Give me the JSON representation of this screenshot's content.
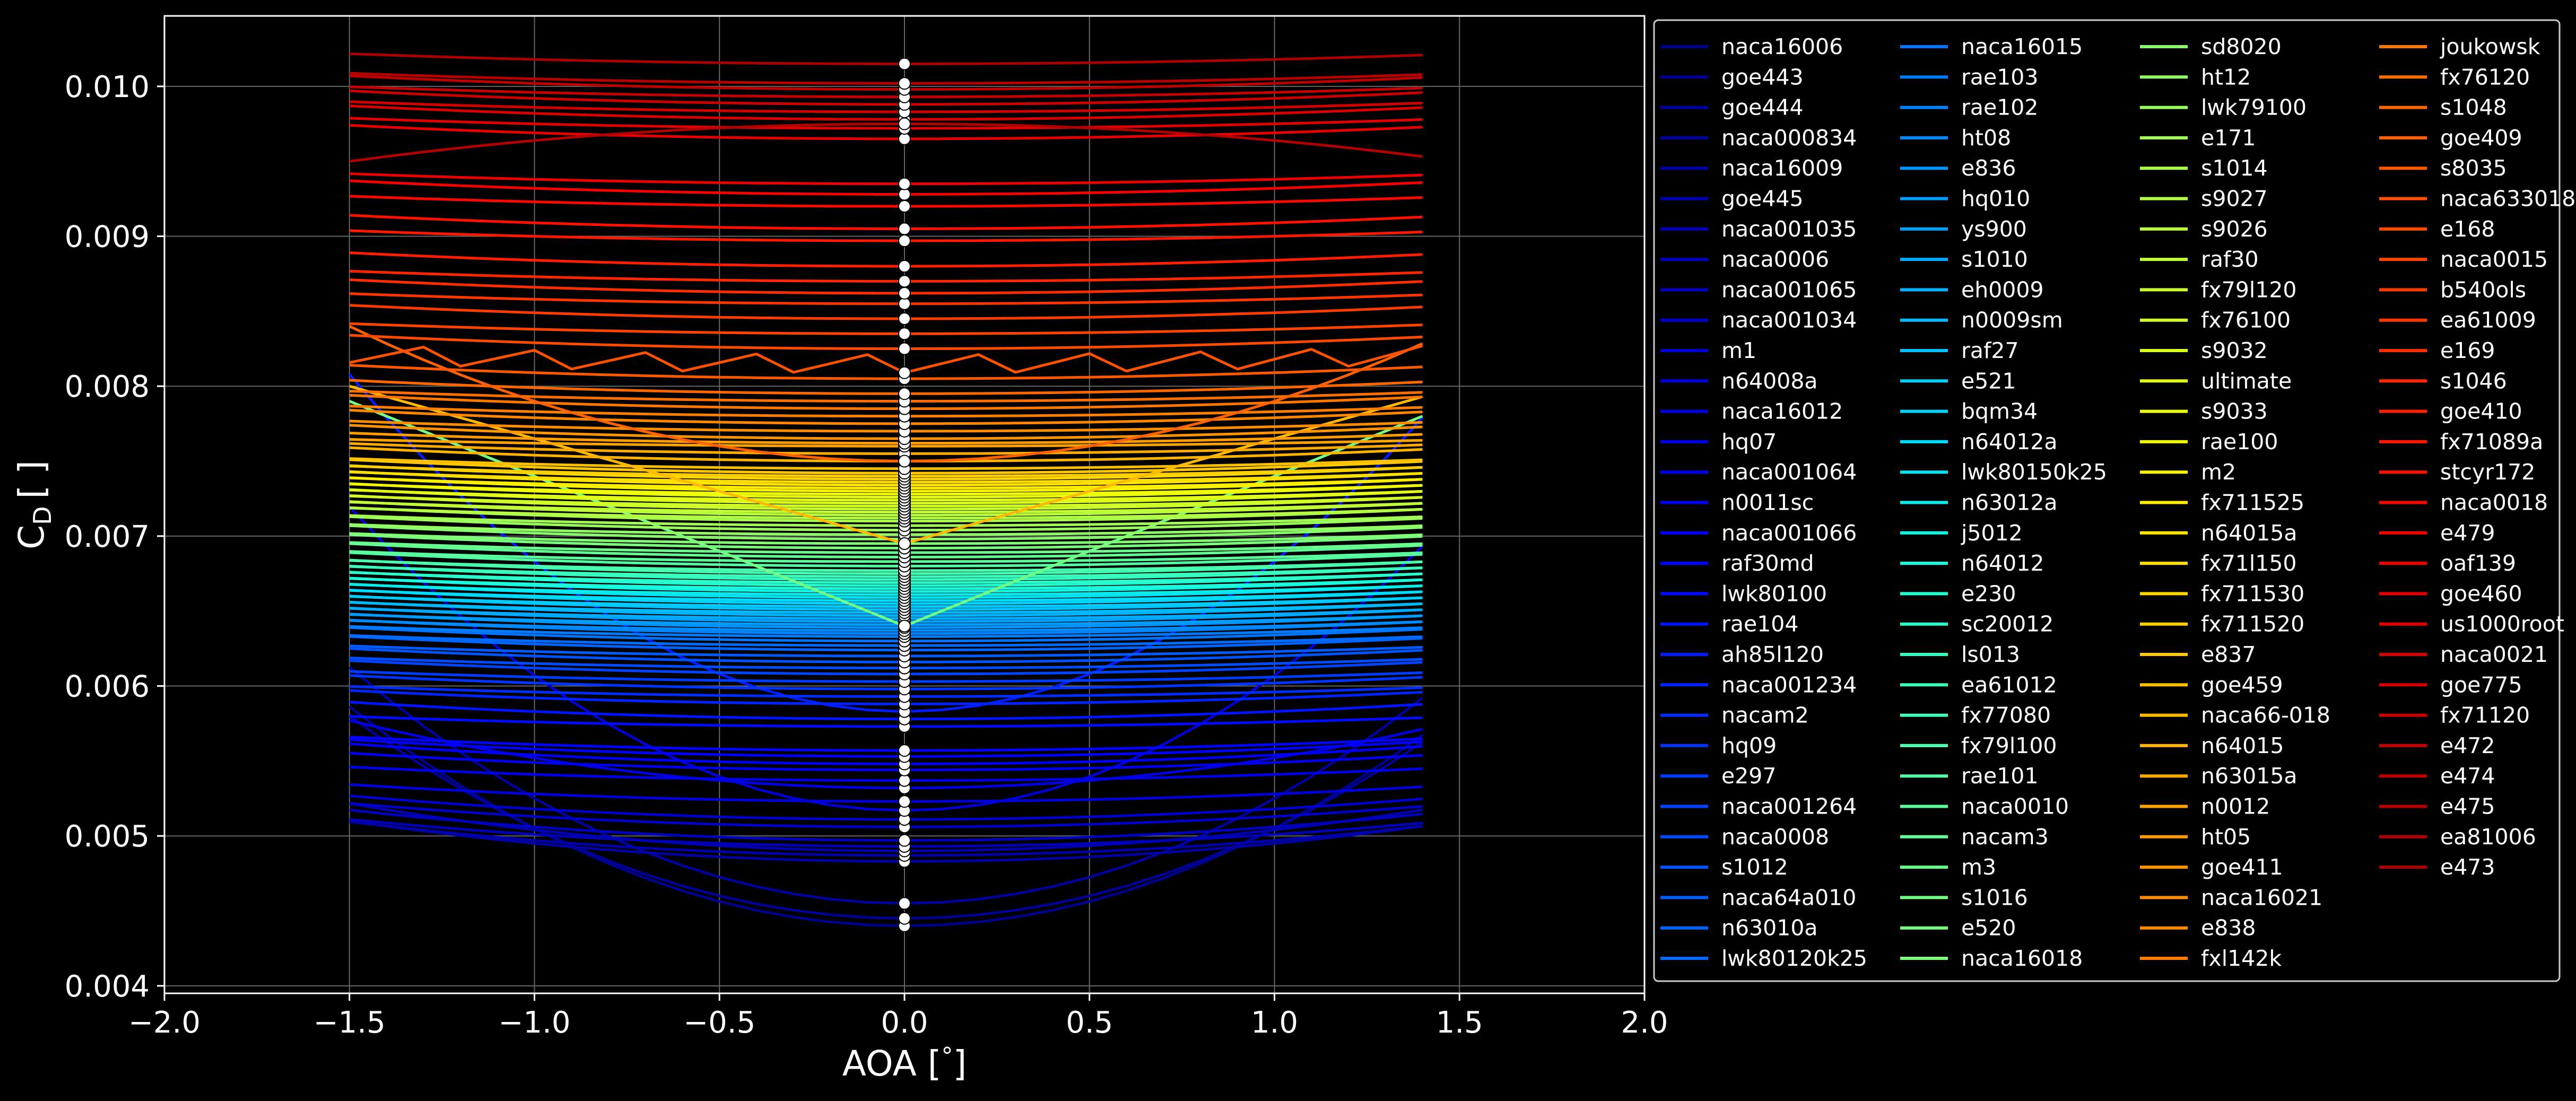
{
  "chart_data": {
    "type": "line",
    "title": "",
    "xlabel": "AOA [",
    "xlabel_unit": "°",
    "xlabel_close": "]",
    "ylabel_main": "C",
    "ylabel_sub": "D",
    "ylabel_unit": "[ ]",
    "xlim": [
      -2.0,
      2.0
    ],
    "ylim": [
      0.00395,
      0.01047
    ],
    "x_ticks": [
      -2.0,
      -1.5,
      -1.0,
      -0.5,
      0.0,
      0.5,
      1.0,
      1.5,
      2.0
    ],
    "x_tick_labels": [
      "−2.0",
      "−1.5",
      "−1.0",
      "−0.5",
      "0.0",
      "0.5",
      "1.0",
      "1.5",
      "2.0"
    ],
    "y_ticks": [
      0.004,
      0.005,
      0.006,
      0.007,
      0.008,
      0.009,
      0.01
    ],
    "y_tick_labels": [
      "0.004",
      "0.005",
      "0.006",
      "0.007",
      "0.008",
      "0.009",
      "0.010"
    ],
    "grid": true,
    "legend_placement": "outside-right",
    "legend_columns": 4,
    "x": [
      -1.5,
      -1.4,
      -1.3,
      -1.2,
      -1.1,
      -1.0,
      -0.9,
      -0.8,
      -0.7,
      -0.6,
      -0.5,
      -0.4,
      -0.3,
      -0.2,
      -0.1,
      0.0,
      0.1,
      0.2,
      0.3,
      0.4,
      0.5,
      0.6,
      0.7,
      0.8,
      0.9,
      1.0,
      1.1,
      1.2,
      1.3,
      1.4
    ],
    "marker_x": 0.0,
    "colormap": "jet",
    "colors": {
      "background": "#000000",
      "axes": "#ffffff",
      "grid": "#666666",
      "marker_fill": "#ffffff",
      "marker_edge": "#000000",
      "legend_border": "#cccccc"
    },
    "series": [
      {
        "name": "naca16006",
        "cd0": 0.0044,
        "k": 0.00065,
        "shape": "parabola",
        "color": "#00008f"
      },
      {
        "name": "goe443",
        "cd0": 0.00445,
        "k": 0.0006,
        "shape": "parabola",
        "color": "#000096"
      },
      {
        "name": "goe444",
        "cd0": 0.00455,
        "k": 0.0007,
        "shape": "parabola",
        "color": "#00009d"
      },
      {
        "name": "naca000834",
        "cd0": 0.00483,
        "k": 0.00012,
        "shape": "parabola",
        "color": "#0000a3"
      },
      {
        "name": "naca16009",
        "cd0": 0.00487,
        "k": 0.0001,
        "shape": "parabola",
        "color": "#0000aa"
      },
      {
        "name": "goe445",
        "cd0": 0.0049,
        "k": 0.00014,
        "shape": "parabola",
        "color": "#0000b1"
      },
      {
        "name": "naca001035",
        "cd0": 0.00493,
        "k": 8e-05,
        "shape": "parabola",
        "color": "#0000b8"
      },
      {
        "name": "naca0006",
        "cd0": 0.00497,
        "k": 9e-05,
        "shape": "parabola",
        "color": "#0000bf"
      },
      {
        "name": "naca001065",
        "cd0": 0.00506,
        "k": 7e-05,
        "shape": "parabola",
        "color": "#0000c6"
      },
      {
        "name": "naca001034",
        "cd0": 0.00511,
        "k": 7e-05,
        "shape": "parabola",
        "color": "#0000cd"
      },
      {
        "name": "m1",
        "cd0": 0.00517,
        "k": 0.0009,
        "shape": "parabola",
        "color": "#0000d4"
      },
      {
        "name": "n64008a",
        "cd0": 0.00523,
        "k": 5e-05,
        "shape": "parabola",
        "color": "#0000db"
      },
      {
        "name": "naca16012",
        "cd0": 0.00532,
        "k": 0.0002,
        "shape": "parabola",
        "color": "#0000e2"
      },
      {
        "name": "hq07",
        "cd0": 0.00537,
        "k": 4e-05,
        "shape": "parabola",
        "color": "#0000e8"
      },
      {
        "name": "naca001064",
        "cd0": 0.00544,
        "k": 5e-05,
        "shape": "parabola",
        "color": "#0000ef"
      },
      {
        "name": "n0011sc",
        "cd0": 0.00548,
        "k": 6e-05,
        "shape": "parabola",
        "color": "#0000f6"
      },
      {
        "name": "naca001066",
        "cd0": 0.00553,
        "k": 5e-05,
        "shape": "parabola",
        "color": "#0000fd"
      },
      {
        "name": "raf30md",
        "cd0": 0.00557,
        "k": 4e-05,
        "shape": "parabola",
        "color": "#0004ff"
      },
      {
        "name": "lwk80100",
        "cd0": 0.00573,
        "k": 3e-05,
        "shape": "parabola",
        "color": "#000cff"
      },
      {
        "name": "rae104",
        "cd0": 0.00578,
        "k": 5e-05,
        "shape": "parabola",
        "color": "#0014ff"
      },
      {
        "name": "ah85l120",
        "cd0": 0.00583,
        "k": 0.001,
        "shape": "parabola",
        "color": "#001cff"
      },
      {
        "name": "naca001234",
        "cd0": 0.00588,
        "k": 4e-05,
        "shape": "parabola",
        "color": "#0024ff"
      },
      {
        "name": "nacam2",
        "cd0": 0.00593,
        "k": 3e-05,
        "shape": "parabola",
        "color": "#002cff"
      },
      {
        "name": "hq09",
        "cd0": 0.00598,
        "k": 4e-05,
        "shape": "parabola",
        "color": "#0034ff"
      },
      {
        "name": "e297",
        "cd0": 0.00603,
        "k": 3e-05,
        "shape": "parabola",
        "color": "#003cff"
      },
      {
        "name": "naca001264",
        "cd0": 0.00608,
        "k": 4e-05,
        "shape": "parabola",
        "color": "#0044ff"
      },
      {
        "name": "naca0008",
        "cd0": 0.00612,
        "k": 3e-05,
        "shape": "parabola",
        "color": "#004cff"
      },
      {
        "name": "s1012",
        "cd0": 0.00616,
        "k": 4e-05,
        "shape": "parabola",
        "color": "#0054ff"
      },
      {
        "name": "naca64a010",
        "cd0": 0.0062,
        "k": 3e-05,
        "shape": "parabola",
        "color": "#005cff"
      },
      {
        "name": "n63010a",
        "cd0": 0.00624,
        "k": 4e-05,
        "shape": "parabola",
        "color": "#0064ff"
      },
      {
        "name": "lwk80120k25",
        "cd0": 0.00627,
        "k": 3e-05,
        "shape": "parabola",
        "color": "#006cff"
      },
      {
        "name": "naca16015",
        "cd0": 0.0063,
        "k": 4e-05,
        "shape": "parabola",
        "color": "#0074ff"
      },
      {
        "name": "rae103",
        "cd0": 0.00633,
        "k": 3e-05,
        "shape": "parabola",
        "color": "#007cff"
      },
      {
        "name": "rae102",
        "cd0": 0.00635,
        "k": 4e-05,
        "shape": "parabola",
        "color": "#0084ff"
      },
      {
        "name": "ht08",
        "cd0": 0.00637,
        "k": 3e-05,
        "shape": "parabola",
        "color": "#008cff"
      },
      {
        "name": "e836",
        "cd0": 0.00639,
        "k": 4e-05,
        "shape": "parabola",
        "color": "#0094ff"
      },
      {
        "name": "hq010",
        "cd0": 0.00641,
        "k": 3e-05,
        "shape": "parabola",
        "color": "#009cff"
      },
      {
        "name": "ys900",
        "cd0": 0.00643,
        "k": 4e-05,
        "shape": "parabola",
        "color": "#00a4ff"
      },
      {
        "name": "s1010",
        "cd0": 0.00645,
        "k": 3e-05,
        "shape": "parabola",
        "color": "#00acff"
      },
      {
        "name": "eh0009",
        "cd0": 0.00647,
        "k": 4e-05,
        "shape": "parabola",
        "color": "#00b4ff"
      },
      {
        "name": "n0009sm",
        "cd0": 0.00649,
        "k": 3e-05,
        "shape": "parabola",
        "color": "#00bcff"
      },
      {
        "name": "raf27",
        "cd0": 0.00651,
        "k": 4e-05,
        "shape": "parabola",
        "color": "#00c4ff"
      },
      {
        "name": "e521",
        "cd0": 0.00653,
        "k": 3e-05,
        "shape": "parabola",
        "color": "#00ccff"
      },
      {
        "name": "bqm34",
        "cd0": 0.00655,
        "k": 4e-05,
        "shape": "parabola",
        "color": "#00d4ff"
      },
      {
        "name": "n64012a",
        "cd0": 0.00657,
        "k": 3e-05,
        "shape": "parabola",
        "color": "#00dcfe"
      },
      {
        "name": "lwk80150k25",
        "cd0": 0.00659,
        "k": 4e-05,
        "shape": "parabola",
        "color": "#02e4f4"
      },
      {
        "name": "n63012a",
        "cd0": 0.00661,
        "k": 3e-05,
        "shape": "parabola",
        "color": "#0aecec"
      },
      {
        "name": "j5012",
        "cd0": 0.00663,
        "k": 4e-05,
        "shape": "parabola",
        "color": "#12f4e4"
      },
      {
        "name": "n64012",
        "cd0": 0.00665,
        "k": 3e-05,
        "shape": "parabola",
        "color": "#1afcdc"
      },
      {
        "name": "e230",
        "cd0": 0.00667,
        "k": 4e-05,
        "shape": "parabola",
        "color": "#22ffd4"
      },
      {
        "name": "sc20012",
        "cd0": 0.00669,
        "k": 3e-05,
        "shape": "parabola",
        "color": "#2affcc"
      },
      {
        "name": "ls013",
        "cd0": 0.00671,
        "k": 4e-05,
        "shape": "parabola",
        "color": "#32ffc4"
      },
      {
        "name": "ea61012",
        "cd0": 0.00673,
        "k": 3e-05,
        "shape": "parabola",
        "color": "#3affbc"
      },
      {
        "name": "fx77080",
        "cd0": 0.00675,
        "k": 4e-05,
        "shape": "parabola",
        "color": "#42ffb4"
      },
      {
        "name": "fx79l100",
        "cd0": 0.00677,
        "k": 3e-05,
        "shape": "parabola",
        "color": "#4affac"
      },
      {
        "name": "rae101",
        "cd0": 0.0068,
        "k": 4e-05,
        "shape": "parabola",
        "color": "#52ffa4"
      },
      {
        "name": "naca0010",
        "cd0": 0.00683,
        "k": 3e-05,
        "shape": "parabola",
        "color": "#5aff9c"
      },
      {
        "name": "nacam3",
        "cd0": 0.00686,
        "k": 4e-05,
        "shape": "parabola",
        "color": "#62ff94"
      },
      {
        "name": "m3",
        "cd0": 0.00689,
        "k": 3e-05,
        "shape": "parabola",
        "color": "#6aff8c"
      },
      {
        "name": "s1016",
        "cd0": 0.0064,
        "k": 0.001,
        "shape": "v",
        "color": "#72ff84"
      },
      {
        "name": "e520",
        "cd0": 0.00692,
        "k": 4e-05,
        "shape": "parabola",
        "color": "#7aff7c"
      },
      {
        "name": "naca16018",
        "cd0": 0.00695,
        "k": 3e-05,
        "shape": "parabola",
        "color": "#82ff74"
      },
      {
        "name": "sd8020",
        "cd0": 0.00698,
        "k": 4e-05,
        "shape": "parabola",
        "color": "#8aff6c"
      },
      {
        "name": "ht12",
        "cd0": 0.00701,
        "k": 3e-05,
        "shape": "parabola",
        "color": "#92ff64"
      },
      {
        "name": "lwk79100",
        "cd0": 0.00704,
        "k": 4e-05,
        "shape": "parabola",
        "color": "#9aff5c"
      },
      {
        "name": "e171",
        "cd0": 0.00707,
        "k": 3e-05,
        "shape": "parabola",
        "color": "#a2ff54"
      },
      {
        "name": "s1014",
        "cd0": 0.0071,
        "k": 4e-05,
        "shape": "parabola",
        "color": "#aaff4c"
      },
      {
        "name": "s9027",
        "cd0": 0.00712,
        "k": 3e-05,
        "shape": "parabola",
        "color": "#b2ff44"
      },
      {
        "name": "s9026",
        "cd0": 0.00714,
        "k": 4e-05,
        "shape": "parabola",
        "color": "#baff3c"
      },
      {
        "name": "raf30",
        "cd0": 0.00716,
        "k": 3e-05,
        "shape": "parabola",
        "color": "#c2ff34"
      },
      {
        "name": "fx79l120",
        "cd0": 0.00718,
        "k": 4e-05,
        "shape": "parabola",
        "color": "#caff2c"
      },
      {
        "name": "fx76100",
        "cd0": 0.0072,
        "k": 3e-05,
        "shape": "parabola",
        "color": "#d2ff24"
      },
      {
        "name": "s9032",
        "cd0": 0.00722,
        "k": 4e-05,
        "shape": "parabola",
        "color": "#daff1c"
      },
      {
        "name": "ultimate",
        "cd0": 0.00724,
        "k": 3e-05,
        "shape": "parabola",
        "color": "#e2ff14"
      },
      {
        "name": "s9033",
        "cd0": 0.00726,
        "k": 4e-05,
        "shape": "parabola",
        "color": "#eaff0c"
      },
      {
        "name": "rae100",
        "cd0": 0.00728,
        "k": 3e-05,
        "shape": "parabola",
        "color": "#f2fc04"
      },
      {
        "name": "m2",
        "cd0": 0.0073,
        "k": 4e-05,
        "shape": "parabola",
        "color": "#faf400"
      },
      {
        "name": "fx711525",
        "cd0": 0.00732,
        "k": 3e-05,
        "shape": "parabola",
        "color": "#ffed00"
      },
      {
        "name": "n64015a",
        "cd0": 0.00734,
        "k": 4e-05,
        "shape": "parabola",
        "color": "#ffe500"
      },
      {
        "name": "fx71l150",
        "cd0": 0.00736,
        "k": 3e-05,
        "shape": "parabola",
        "color": "#ffde00"
      },
      {
        "name": "fx711530",
        "cd0": 0.00738,
        "k": 4e-05,
        "shape": "parabola",
        "color": "#ffd700"
      },
      {
        "name": "fx711520",
        "cd0": 0.0074,
        "k": 3e-05,
        "shape": "parabola",
        "color": "#ffcf00"
      },
      {
        "name": "e837",
        "cd0": 0.00742,
        "k": 4e-05,
        "shape": "parabola",
        "color": "#ffc800"
      },
      {
        "name": "goe459",
        "cd0": 0.00745,
        "k": 3e-05,
        "shape": "parabola",
        "color": "#ffc000"
      },
      {
        "name": "naca66-018",
        "cd0": 0.00695,
        "k": 0.0007,
        "shape": "v",
        "color": "#ffb900"
      },
      {
        "name": "n64015",
        "cd0": 0.0075,
        "k": 4e-05,
        "shape": "parabola",
        "color": "#ffb200"
      },
      {
        "name": "n63015a",
        "cd0": 0.00755,
        "k": 3e-05,
        "shape": "parabola",
        "color": "#ffaa00"
      },
      {
        "name": "n0012",
        "cd0": 0.0076,
        "k": 2e-05,
        "shape": "parabola",
        "color": "#ffa300"
      },
      {
        "name": "ht05",
        "cd0": 0.00762,
        "k": 3e-05,
        "shape": "parabola",
        "color": "#ff9c00"
      },
      {
        "name": "goe411",
        "cd0": 0.00765,
        "k": 4e-05,
        "shape": "parabola",
        "color": "#ff9400"
      },
      {
        "name": "naca16021",
        "cd0": 0.0077,
        "k": 3e-05,
        "shape": "parabola",
        "color": "#ff8d00"
      },
      {
        "name": "e838",
        "cd0": 0.00775,
        "k": 4e-05,
        "shape": "parabola",
        "color": "#ff8600"
      },
      {
        "name": "fxl142k",
        "cd0": 0.0078,
        "k": 3e-05,
        "shape": "parabola",
        "color": "#ff7e00"
      },
      {
        "name": "joukowsk",
        "cd0": 0.00785,
        "k": 4e-05,
        "shape": "parabola",
        "color": "#ff7700"
      },
      {
        "name": "fx76120",
        "cd0": 0.0079,
        "k": 3e-05,
        "shape": "parabola",
        "color": "#ff6f00"
      },
      {
        "name": "s1048",
        "cd0": 0.00795,
        "k": 4e-05,
        "shape": "parabola",
        "color": "#ff6800"
      },
      {
        "name": "goe409",
        "cd0": 0.0075,
        "k": 0.0004,
        "shape": "parabola",
        "color": "#ff6100"
      },
      {
        "name": "s8035",
        "cd0": 0.00805,
        "k": 4e-05,
        "shape": "parabola",
        "color": "#ff5900"
      },
      {
        "name": "naca633018",
        "cd0": 0.00815,
        "k": 3e-05,
        "shape": "wiggle",
        "color": "#ff5200"
      },
      {
        "name": "e168",
        "cd0": 0.00825,
        "k": 4e-05,
        "shape": "parabola",
        "color": "#ff4b00"
      },
      {
        "name": "naca0015",
        "cd0": 0.00835,
        "k": 3e-05,
        "shape": "parabola",
        "color": "#ff4300"
      },
      {
        "name": "b540ols",
        "cd0": 0.00845,
        "k": 4e-05,
        "shape": "parabola",
        "color": "#ff3c00"
      },
      {
        "name": "ea61009",
        "cd0": 0.00855,
        "k": 3e-05,
        "shape": "parabola",
        "color": "#ff3500"
      },
      {
        "name": "e169",
        "cd0": 0.00862,
        "k": 4e-05,
        "shape": "parabola",
        "color": "#ff2d00"
      },
      {
        "name": "s1046",
        "cd0": 0.0087,
        "k": 3e-05,
        "shape": "parabola",
        "color": "#ff2600"
      },
      {
        "name": "goe410",
        "cd0": 0.0088,
        "k": 4e-05,
        "shape": "parabola",
        "color": "#ff1e00"
      },
      {
        "name": "fx71089a",
        "cd0": 0.00897,
        "k": 3e-05,
        "shape": "parabola",
        "color": "#ff1700"
      },
      {
        "name": "stcyr172",
        "cd0": 0.00905,
        "k": 4e-05,
        "shape": "parabola",
        "color": "#ff1000"
      },
      {
        "name": "naca0018",
        "cd0": 0.0092,
        "k": 3e-05,
        "shape": "parabola",
        "color": "#fd0800"
      },
      {
        "name": "e479",
        "cd0": 0.00928,
        "k": 4e-05,
        "shape": "parabola",
        "color": "#f60000"
      },
      {
        "name": "oaf139",
        "cd0": 0.00935,
        "k": 3e-05,
        "shape": "parabola",
        "color": "#ef0000"
      },
      {
        "name": "goe460",
        "cd0": 0.00965,
        "k": 4e-05,
        "shape": "parabola",
        "color": "#e80000"
      },
      {
        "name": "us1000root",
        "cd0": 0.00972,
        "k": 3e-05,
        "shape": "parabola",
        "color": "#e20000"
      },
      {
        "name": "naca0021",
        "cd0": 0.00978,
        "k": 4e-05,
        "shape": "parabola",
        "color": "#db0000"
      },
      {
        "name": "goe775",
        "cd0": 0.00983,
        "k": 3e-05,
        "shape": "parabola",
        "color": "#d40000"
      },
      {
        "name": "fx71120",
        "cd0": 0.00988,
        "k": 4e-05,
        "shape": "parabola",
        "color": "#cd0000"
      },
      {
        "name": "e472",
        "cd0": 0.00993,
        "k": 3e-05,
        "shape": "parabola",
        "color": "#c60000"
      },
      {
        "name": "e474",
        "cd0": 0.00998,
        "k": 4e-05,
        "shape": "parabola",
        "color": "#bf0000"
      },
      {
        "name": "e475",
        "cd0": 0.01002,
        "k": 3e-05,
        "shape": "parabola",
        "color": "#b80000"
      },
      {
        "name": "ea81006",
        "cd0": 0.0095,
        "k": 0.0005,
        "shape": "cap",
        "color": "#b10000"
      },
      {
        "name": "e473",
        "cd0": 0.01015,
        "k": 3e-05,
        "shape": "parabola",
        "color": "#aa0000"
      }
    ]
  }
}
